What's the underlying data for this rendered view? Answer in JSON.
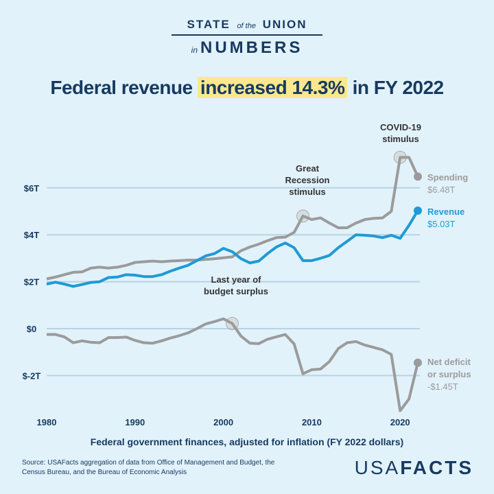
{
  "header": {
    "brand_line1_a": "STATE",
    "brand_line1_b": "of the",
    "brand_line1_c": "UNION",
    "brand_line2_a": "in",
    "brand_line2_b": "NUMBERS",
    "title_pre": "Federal revenue ",
    "title_highlight": "increased 14.3%",
    "title_post": " in FY 2022"
  },
  "colors": {
    "revenue": "#1f9ad6",
    "spending": "#9b9b9b",
    "deficit": "#9b9b9b",
    "text": "#173a60",
    "highlight": "#fbe88e",
    "background": "#e2f2fb"
  },
  "chart_data": {
    "type": "line",
    "xlabel": "Federal government finances, adjusted for inflation (FY 2022 dollars)",
    "ylabel": "",
    "xlim": [
      1980,
      2022
    ],
    "ylim": [
      -3.6,
      7.6
    ],
    "x_ticks": [
      1980,
      1990,
      2000,
      2010,
      2020
    ],
    "x_tick_labels": [
      "1980",
      "1990",
      "2000",
      "2010",
      "2020"
    ],
    "y_ticks": [
      6,
      4,
      2,
      0,
      -2
    ],
    "y_tick_labels": [
      "$6T",
      "$4T",
      "$2T",
      "$0",
      "$-2T"
    ],
    "grid": true,
    "x": [
      1980,
      1981,
      1982,
      1983,
      1984,
      1985,
      1986,
      1987,
      1988,
      1989,
      1990,
      1991,
      1992,
      1993,
      1994,
      1995,
      1996,
      1997,
      1998,
      1999,
      2000,
      2001,
      2002,
      2003,
      2004,
      2005,
      2006,
      2007,
      2008,
      2009,
      2010,
      2011,
      2012,
      2013,
      2014,
      2015,
      2016,
      2017,
      2018,
      2019,
      2020,
      2021,
      2022
    ],
    "series": [
      {
        "name": "Spending",
        "end_label": "$6.48T",
        "values": [
          2.12,
          2.2,
          2.3,
          2.4,
          2.42,
          2.58,
          2.62,
          2.58,
          2.62,
          2.7,
          2.82,
          2.85,
          2.88,
          2.85,
          2.88,
          2.9,
          2.92,
          2.92,
          2.95,
          2.98,
          3.02,
          3.06,
          3.32,
          3.48,
          3.6,
          3.75,
          3.88,
          3.9,
          4.1,
          4.8,
          4.65,
          4.72,
          4.5,
          4.3,
          4.3,
          4.5,
          4.65,
          4.7,
          4.72,
          5.0,
          7.3,
          7.3,
          6.48
        ]
      },
      {
        "name": "Revenue",
        "end_label": "$5.03T",
        "values": [
          1.9,
          1.98,
          1.9,
          1.8,
          1.88,
          1.97,
          2.0,
          2.18,
          2.2,
          2.3,
          2.28,
          2.22,
          2.22,
          2.3,
          2.45,
          2.58,
          2.7,
          2.9,
          3.1,
          3.2,
          3.42,
          3.28,
          2.98,
          2.8,
          2.88,
          3.2,
          3.48,
          3.65,
          3.45,
          2.9,
          2.9,
          3.0,
          3.12,
          3.45,
          3.72,
          4.0,
          3.98,
          3.95,
          3.88,
          3.98,
          3.85,
          4.4,
          5.03
        ]
      },
      {
        "name": "Net deficit or surplus",
        "end_label": "-$1.45T",
        "values": [
          -0.25,
          -0.25,
          -0.35,
          -0.6,
          -0.52,
          -0.58,
          -0.6,
          -0.38,
          -0.38,
          -0.36,
          -0.5,
          -0.6,
          -0.62,
          -0.52,
          -0.4,
          -0.3,
          -0.18,
          0.0,
          0.2,
          0.3,
          0.42,
          0.22,
          -0.32,
          -0.62,
          -0.64,
          -0.45,
          -0.35,
          -0.25,
          -0.65,
          -1.92,
          -1.75,
          -1.72,
          -1.4,
          -0.85,
          -0.6,
          -0.55,
          -0.7,
          -0.8,
          -0.9,
          -1.1,
          -3.5,
          -3.0,
          -1.45
        ]
      }
    ],
    "annotations": [
      {
        "lines": [
          "COVID-19",
          "stimulus"
        ],
        "x": 2020,
        "series": "Spending"
      },
      {
        "lines": [
          "Great",
          "Recession",
          "stimulus"
        ],
        "x": 2009,
        "series": "Spending"
      },
      {
        "lines": [
          "Last year of",
          "budget surplus"
        ],
        "x": 2001,
        "series": "Net deficit or surplus"
      }
    ],
    "legend_labels": {
      "spending": "Spending",
      "revenue": "Revenue",
      "deficit_1": "Net deficit",
      "deficit_2": "or surplus"
    }
  },
  "footer": {
    "source": "Source: USAFacts aggregation of data from Office of Management and Budget, the Census Bureau, and the Bureau of Economic Analysis",
    "logo_a": "USA",
    "logo_b": "FACTS"
  }
}
